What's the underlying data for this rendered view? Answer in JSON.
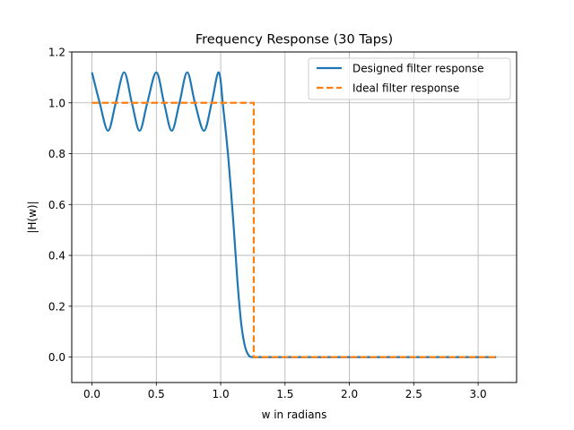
{
  "chart_data": {
    "type": "line",
    "title": "Frequency Response (30 Taps)",
    "xlabel": "w in radians",
    "ylabel": "|H(w)|",
    "xlim": [
      -0.157,
      3.299
    ],
    "ylim": [
      -0.1,
      1.2
    ],
    "xticks": [
      0.0,
      0.5,
      1.0,
      1.5,
      2.0,
      2.5,
      3.0
    ],
    "xtick_labels": [
      "0.0",
      "0.5",
      "1.0",
      "1.5",
      "2.0",
      "2.5",
      "3.0"
    ],
    "yticks": [
      0.0,
      0.2,
      0.4,
      0.6,
      0.8,
      1.0,
      1.2
    ],
    "ytick_labels": [
      "0.0",
      "0.2",
      "0.4",
      "0.6",
      "0.8",
      "1.0",
      "1.2"
    ],
    "grid": true,
    "legend_position": "top-right",
    "series": [
      {
        "name": "Designed filter response",
        "color": "#1f77b4",
        "style": "solid",
        "x": [
          0.0,
          0.06,
          0.125,
          0.185,
          0.25,
          0.31,
          0.37,
          0.43,
          0.5,
          0.56,
          0.62,
          0.68,
          0.74,
          0.8,
          0.87,
          0.93,
          0.985,
          1.02,
          1.06,
          1.1,
          1.13,
          1.16,
          1.19,
          1.22,
          1.25,
          1.27,
          1.3,
          1.4,
          1.6,
          2.0,
          2.5,
          3.0,
          3.14
        ],
        "y": [
          1.12,
          1.0,
          0.89,
          1.0,
          1.12,
          1.0,
          0.89,
          1.0,
          1.12,
          1.0,
          0.89,
          1.0,
          1.12,
          1.0,
          0.89,
          1.0,
          1.12,
          0.98,
          0.78,
          0.52,
          0.3,
          0.13,
          0.04,
          0.005,
          0.0,
          0.0,
          0.0,
          0.0,
          0.0,
          0.0,
          0.0,
          0.0,
          0.0
        ]
      },
      {
        "name": "Ideal filter response",
        "color": "#ff7f0e",
        "style": "dashed",
        "x": [
          0.0,
          1.257,
          1.257,
          3.14
        ],
        "y": [
          1.0,
          1.0,
          0.0,
          0.0
        ]
      }
    ]
  }
}
